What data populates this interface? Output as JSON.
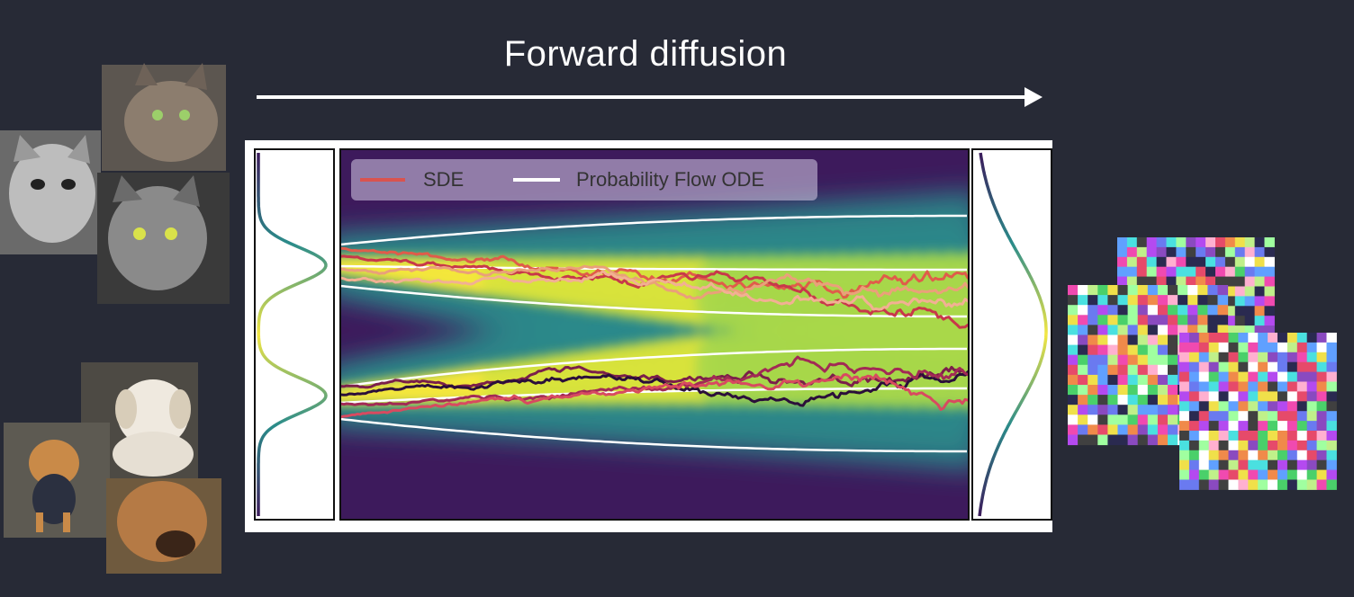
{
  "slide": {
    "title": "Forward diffusion"
  },
  "legend": {
    "items": [
      {
        "label": "SDE",
        "color": "#d9534f"
      },
      {
        "label": "Probability Flow ODE",
        "color": "#ffffff"
      }
    ]
  },
  "images": {
    "left_top_group": "cat photos",
    "left_bottom_group": "dog photos",
    "right_group": "random noise images"
  },
  "colors": {
    "background": "#272a36",
    "arrow": "#ffffff",
    "sde_palette": [
      "#e05c4a",
      "#c8384a",
      "#eaa07a",
      "#f2b093",
      "#7b1f4a",
      "#2b0f3a",
      "#a22a55",
      "#d84a60"
    ],
    "density_colormap": "viridis"
  }
}
